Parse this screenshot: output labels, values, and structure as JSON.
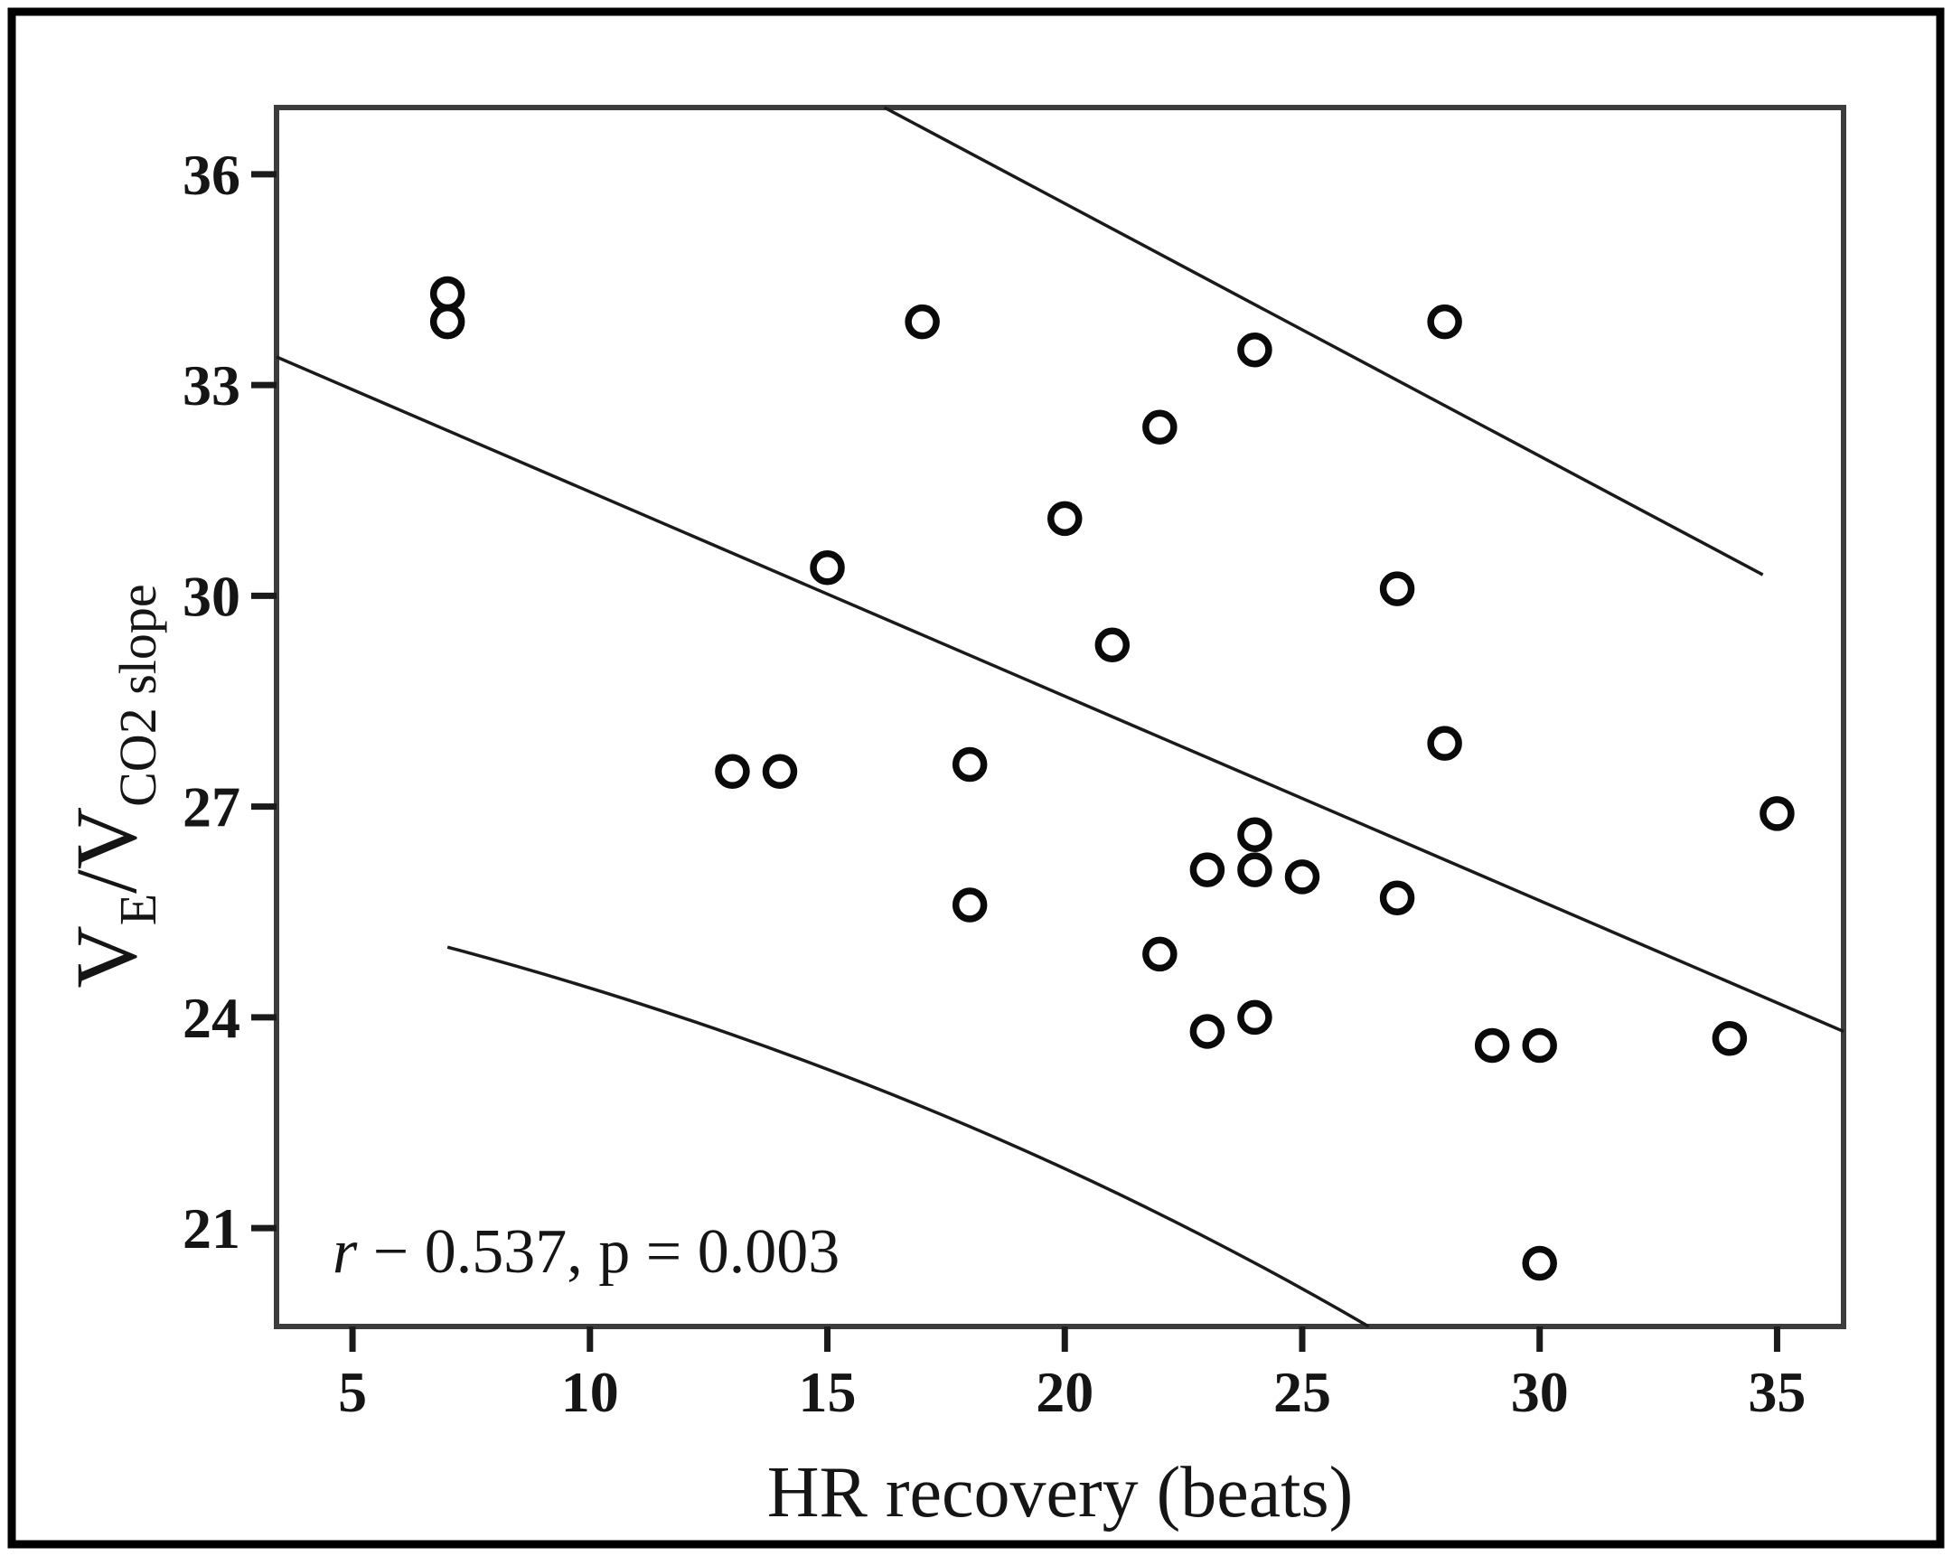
{
  "figure": {
    "background": "#ffffff",
    "outer_border_color": "#000000",
    "frame_color": "#3c3c3c",
    "line_color": "#1a1a1a",
    "marker_stroke_color": "#0a0a0a",
    "marker_fill_color": "#ffffff"
  },
  "chart_data": {
    "type": "scatter",
    "title": "",
    "xlabel": "HR recovery (beats)",
    "ylabel": "VE/VCO2 slope",
    "ylabel_parts": [
      {
        "text": "V",
        "sub": false
      },
      {
        "text": "E",
        "sub": true
      },
      {
        "text": "/V",
        "sub": false
      },
      {
        "text": "CO2 slope",
        "sub": true
      }
    ],
    "annotation": {
      "italic": "r",
      "text": " − 0.537, p = 0.003"
    },
    "xlim": [
      3.4,
      36.4
    ],
    "ylim": [
      19.6,
      36.95
    ],
    "x_ticks": [
      5,
      10,
      15,
      20,
      25,
      30,
      35
    ],
    "y_ticks": [
      21,
      24,
      27,
      30,
      33,
      36
    ],
    "grid": false,
    "legend": null,
    "marker": "open-circle",
    "points": [
      [
        7,
        34.3
      ],
      [
        7,
        33.9
      ],
      [
        17,
        33.9
      ],
      [
        28,
        33.9
      ],
      [
        24,
        33.5
      ],
      [
        22,
        32.4
      ],
      [
        20,
        31.1
      ],
      [
        15,
        30.4
      ],
      [
        27,
        30.1
      ],
      [
        21,
        29.3
      ],
      [
        28,
        27.9
      ],
      [
        13,
        27.5
      ],
      [
        14,
        27.5
      ],
      [
        18,
        27.6
      ],
      [
        35,
        26.9
      ],
      [
        24,
        26.6
      ],
      [
        23,
        26.1
      ],
      [
        24,
        26.1
      ],
      [
        25,
        26.0
      ],
      [
        27,
        25.7
      ],
      [
        18,
        25.6
      ],
      [
        22,
        24.9
      ],
      [
        24,
        24.0
      ],
      [
        23,
        23.8
      ],
      [
        29,
        23.6
      ],
      [
        30,
        23.6
      ],
      [
        34,
        23.7
      ],
      [
        30,
        20.5
      ]
    ],
    "regression_line": {
      "x1": 3.4,
      "y1": 33.4,
      "x2": 36.4,
      "y2": 23.8
    },
    "upper_ci_line": {
      "x1": 16.2,
      "y1": 36.95,
      "x2": 34.7,
      "y2": 30.3
    },
    "lower_ci_line": {
      "points": [
        [
          7.0,
          25.0
        ],
        [
          17.1,
          22.7
        ],
        [
          26.4,
          19.6
        ]
      ]
    }
  }
}
